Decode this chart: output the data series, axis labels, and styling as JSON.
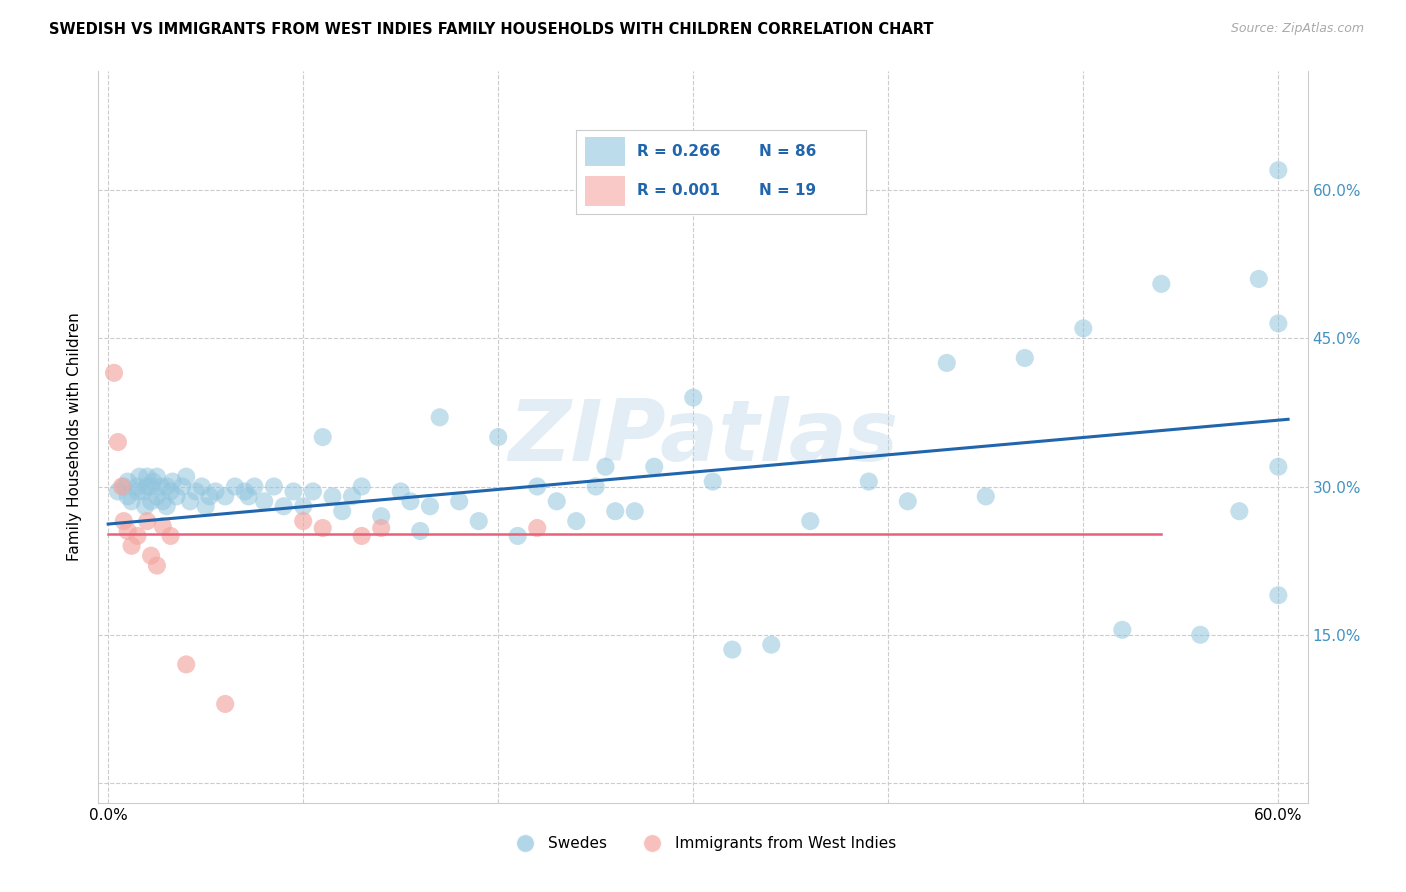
{
  "title": "SWEDISH VS IMMIGRANTS FROM WEST INDIES FAMILY HOUSEHOLDS WITH CHILDREN CORRELATION CHART",
  "source": "Source: ZipAtlas.com",
  "ylabel": "Family Households with Children",
  "xlim": [
    -0.005,
    0.615
  ],
  "ylim": [
    -0.02,
    0.72
  ],
  "yticks": [
    0.0,
    0.15,
    0.3,
    0.45,
    0.6
  ],
  "ytick_labels_right": [
    "",
    "15.0%",
    "30.0%",
    "45.0%",
    "60.0%"
  ],
  "xticks": [
    0.0,
    0.1,
    0.2,
    0.3,
    0.4,
    0.5,
    0.6
  ],
  "xtick_labels": [
    "0.0%",
    "",
    "",
    "",
    "",
    "",
    "60.0%"
  ],
  "blue_color": "#92c5de",
  "pink_color": "#f4a6a0",
  "blue_line_color": "#2166ac",
  "pink_line_color": "#e8607a",
  "blue_tick_color": "#4393c3",
  "watermark": "ZIPatlas",
  "swedes_x": [
    0.005,
    0.008,
    0.01,
    0.01,
    0.012,
    0.015,
    0.015,
    0.016,
    0.018,
    0.019,
    0.02,
    0.02,
    0.022,
    0.022,
    0.023,
    0.025,
    0.025,
    0.027,
    0.028,
    0.03,
    0.03,
    0.032,
    0.033,
    0.035,
    0.038,
    0.04,
    0.042,
    0.045,
    0.048,
    0.05,
    0.052,
    0.055,
    0.06,
    0.065,
    0.07,
    0.072,
    0.075,
    0.08,
    0.085,
    0.09,
    0.095,
    0.1,
    0.105,
    0.11,
    0.115,
    0.12,
    0.125,
    0.13,
    0.14,
    0.15,
    0.155,
    0.16,
    0.165,
    0.17,
    0.18,
    0.19,
    0.2,
    0.21,
    0.22,
    0.23,
    0.24,
    0.25,
    0.255,
    0.26,
    0.27,
    0.28,
    0.3,
    0.31,
    0.32,
    0.34,
    0.36,
    0.39,
    0.41,
    0.43,
    0.45,
    0.47,
    0.5,
    0.52,
    0.54,
    0.56,
    0.58,
    0.59,
    0.6,
    0.6,
    0.6,
    0.6
  ],
  "swedes_y": [
    0.295,
    0.3,
    0.29,
    0.305,
    0.285,
    0.295,
    0.3,
    0.31,
    0.295,
    0.28,
    0.3,
    0.31,
    0.285,
    0.3,
    0.305,
    0.29,
    0.31,
    0.3,
    0.285,
    0.28,
    0.3,
    0.295,
    0.305,
    0.29,
    0.3,
    0.31,
    0.285,
    0.295,
    0.3,
    0.28,
    0.29,
    0.295,
    0.29,
    0.3,
    0.295,
    0.29,
    0.3,
    0.285,
    0.3,
    0.28,
    0.295,
    0.28,
    0.295,
    0.35,
    0.29,
    0.275,
    0.29,
    0.3,
    0.27,
    0.295,
    0.285,
    0.255,
    0.28,
    0.37,
    0.285,
    0.265,
    0.35,
    0.25,
    0.3,
    0.285,
    0.265,
    0.3,
    0.32,
    0.275,
    0.275,
    0.32,
    0.39,
    0.305,
    0.135,
    0.14,
    0.265,
    0.305,
    0.285,
    0.425,
    0.29,
    0.43,
    0.46,
    0.155,
    0.505,
    0.15,
    0.275,
    0.51,
    0.465,
    0.19,
    0.32,
    0.62
  ],
  "west_indies_x": [
    0.003,
    0.005,
    0.007,
    0.008,
    0.01,
    0.012,
    0.015,
    0.02,
    0.022,
    0.025,
    0.028,
    0.032,
    0.04,
    0.06,
    0.1,
    0.11,
    0.13,
    0.14,
    0.22
  ],
  "west_indies_y": [
    0.415,
    0.345,
    0.3,
    0.265,
    0.255,
    0.24,
    0.25,
    0.265,
    0.23,
    0.22,
    0.26,
    0.25,
    0.12,
    0.08,
    0.265,
    0.258,
    0.25,
    0.258,
    0.258
  ],
  "blue_trend_x": [
    0.0,
    0.605
  ],
  "blue_trend_y": [
    0.262,
    0.368
  ],
  "pink_trend_x": [
    0.0,
    0.54
  ],
  "pink_trend_y": [
    0.252,
    0.252
  ],
  "legend_blue_text1": "R = 0.266",
  "legend_blue_text2": "N = 86",
  "legend_pink_text1": "R = 0.001",
  "legend_pink_text2": "N = 19"
}
